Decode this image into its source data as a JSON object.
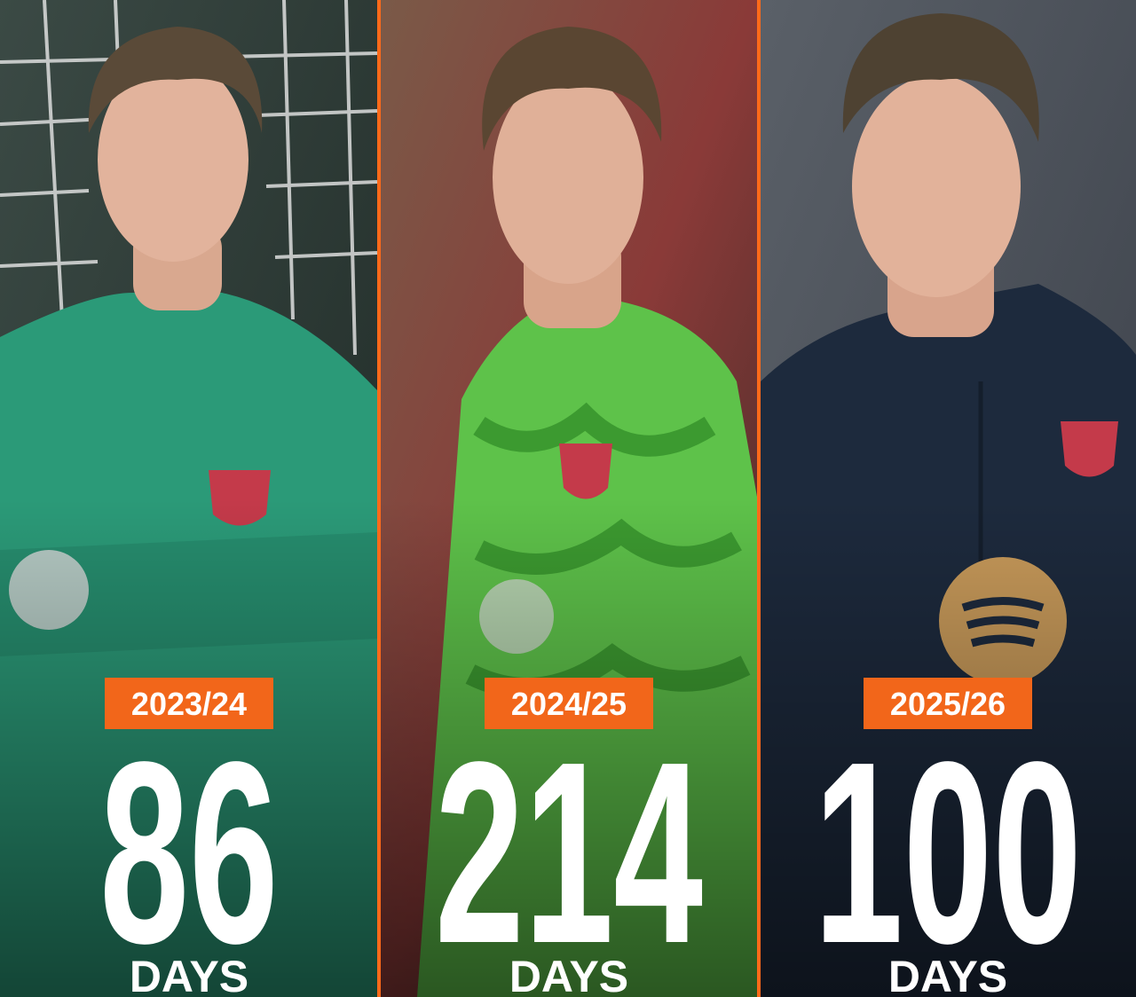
{
  "panels": [
    {
      "season": "2023/24",
      "value": "86",
      "unit": "DAYS"
    },
    {
      "season": "2024/25",
      "value": "214",
      "unit": "DAYS"
    },
    {
      "season": "2025/26",
      "value": "100",
      "unit": "DAYS"
    }
  ]
}
